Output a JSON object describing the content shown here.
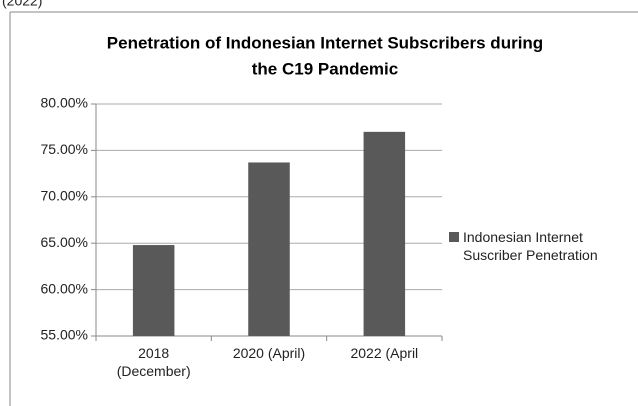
{
  "caption": "(2022)",
  "chart_data": {
    "type": "bar",
    "title": [
      "Penetration of Indonesian Internet Subscribers during",
      "the C19 Pandemic"
    ],
    "categories": [
      "2018 (December)",
      "2020 (April)",
      "2022 (April"
    ],
    "series": [
      {
        "name": "Indonesian Internet Suscriber Penetration",
        "color": "#595959",
        "values": [
          64.8,
          73.7,
          77.0
        ]
      }
    ],
    "ylim": [
      55,
      80
    ],
    "yticks": [
      {
        "value": 55,
        "label": "55.00%"
      },
      {
        "value": 60,
        "label": "60.00%"
      },
      {
        "value": 65,
        "label": "65.00%"
      },
      {
        "value": 70,
        "label": "70.00%"
      },
      {
        "value": 75,
        "label": "75.00%"
      },
      {
        "value": 80,
        "label": "80.00%"
      }
    ],
    "grid": true,
    "legend": "right"
  }
}
